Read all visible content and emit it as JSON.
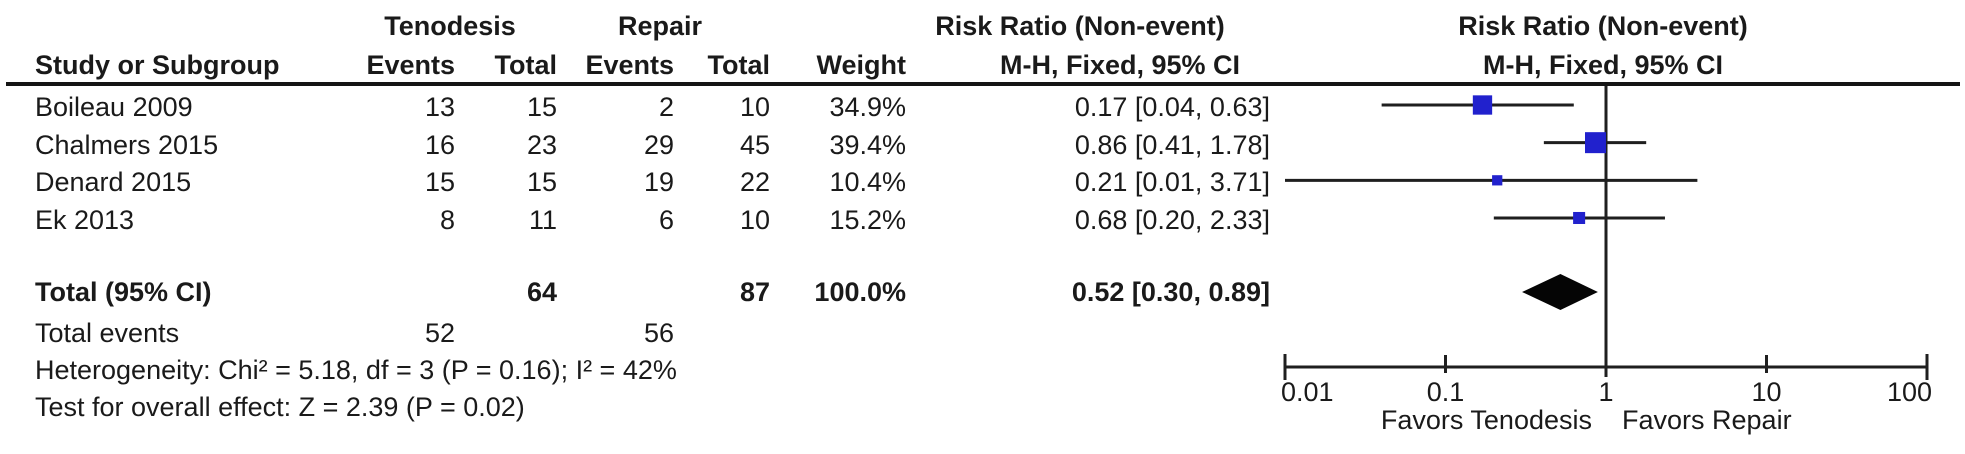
{
  "table": {
    "group_headers": {
      "tenodesis": "Tenodesis",
      "repair": "Repair",
      "risk_ratio_line1": "Risk Ratio (Non-event)",
      "risk_ratio_line2": "M-H, Fixed, 95% CI"
    },
    "col_headers": {
      "study": "Study or Subgroup",
      "events": "Events",
      "total": "Total",
      "weight": "Weight"
    },
    "rows": [
      {
        "study": "Boileau 2009",
        "t_events": "13",
        "t_total": "15",
        "r_events": "2",
        "r_total": "10",
        "weight": "34.9%",
        "rr": "0.17 [0.04, 0.63]"
      },
      {
        "study": "Chalmers 2015",
        "t_events": "16",
        "t_total": "23",
        "r_events": "29",
        "r_total": "45",
        "weight": "39.4%",
        "rr": "0.86 [0.41, 1.78]"
      },
      {
        "study": "Denard 2015",
        "t_events": "15",
        "t_total": "15",
        "r_events": "19",
        "r_total": "22",
        "weight": "10.4%",
        "rr": "0.21 [0.01, 3.71]"
      },
      {
        "study": "Ek 2013",
        "t_events": "8",
        "t_total": "11",
        "r_events": "6",
        "r_total": "10",
        "weight": "15.2%",
        "rr": "0.68 [0.20, 2.33]"
      }
    ],
    "total_row": {
      "label": "Total (95% CI)",
      "t_total": "64",
      "r_total": "87",
      "weight": "100.0%",
      "rr": "0.52 [0.30, 0.89]"
    },
    "total_events_row": {
      "label": "Total events",
      "t_events": "52",
      "r_events": "56"
    },
    "heterogeneity": "Heterogeneity: Chi² = 5.18, df = 3 (P = 0.16); I² = 42%",
    "overall_effect": "Test for overall effect: Z = 2.39 (P = 0.02)"
  },
  "chart_data": {
    "type": "forest",
    "scale": "log10",
    "title_line1": "Risk Ratio (Non-event)",
    "title_line2": "M-H, Fixed, 95% CI",
    "axis_ticks": [
      0.01,
      0.1,
      1,
      10,
      100
    ],
    "axis_tick_labels": [
      "0.01",
      "0.1",
      "1",
      "10",
      "100"
    ],
    "null_line_value": 1,
    "studies": [
      {
        "name": "Boileau 2009",
        "rr": 0.17,
        "ci_low": 0.04,
        "ci_high": 0.63,
        "weight_pct": 34.9
      },
      {
        "name": "Chalmers 2015",
        "rr": 0.86,
        "ci_low": 0.41,
        "ci_high": 1.78,
        "weight_pct": 39.4
      },
      {
        "name": "Denard 2015",
        "rr": 0.21,
        "ci_low": 0.01,
        "ci_high": 3.71,
        "weight_pct": 10.4
      },
      {
        "name": "Ek 2013",
        "rr": 0.68,
        "ci_low": 0.2,
        "ci_high": 2.33,
        "weight_pct": 15.2
      }
    ],
    "total": {
      "rr": 0.52,
      "ci_low": 0.3,
      "ci_high": 0.89
    },
    "favors_left": "Favors Tenodesis",
    "favors_right": "Favors Repair",
    "marker_color": "#2121cd",
    "line_color": "#1f1f1f",
    "diamond_color": "#050505"
  }
}
